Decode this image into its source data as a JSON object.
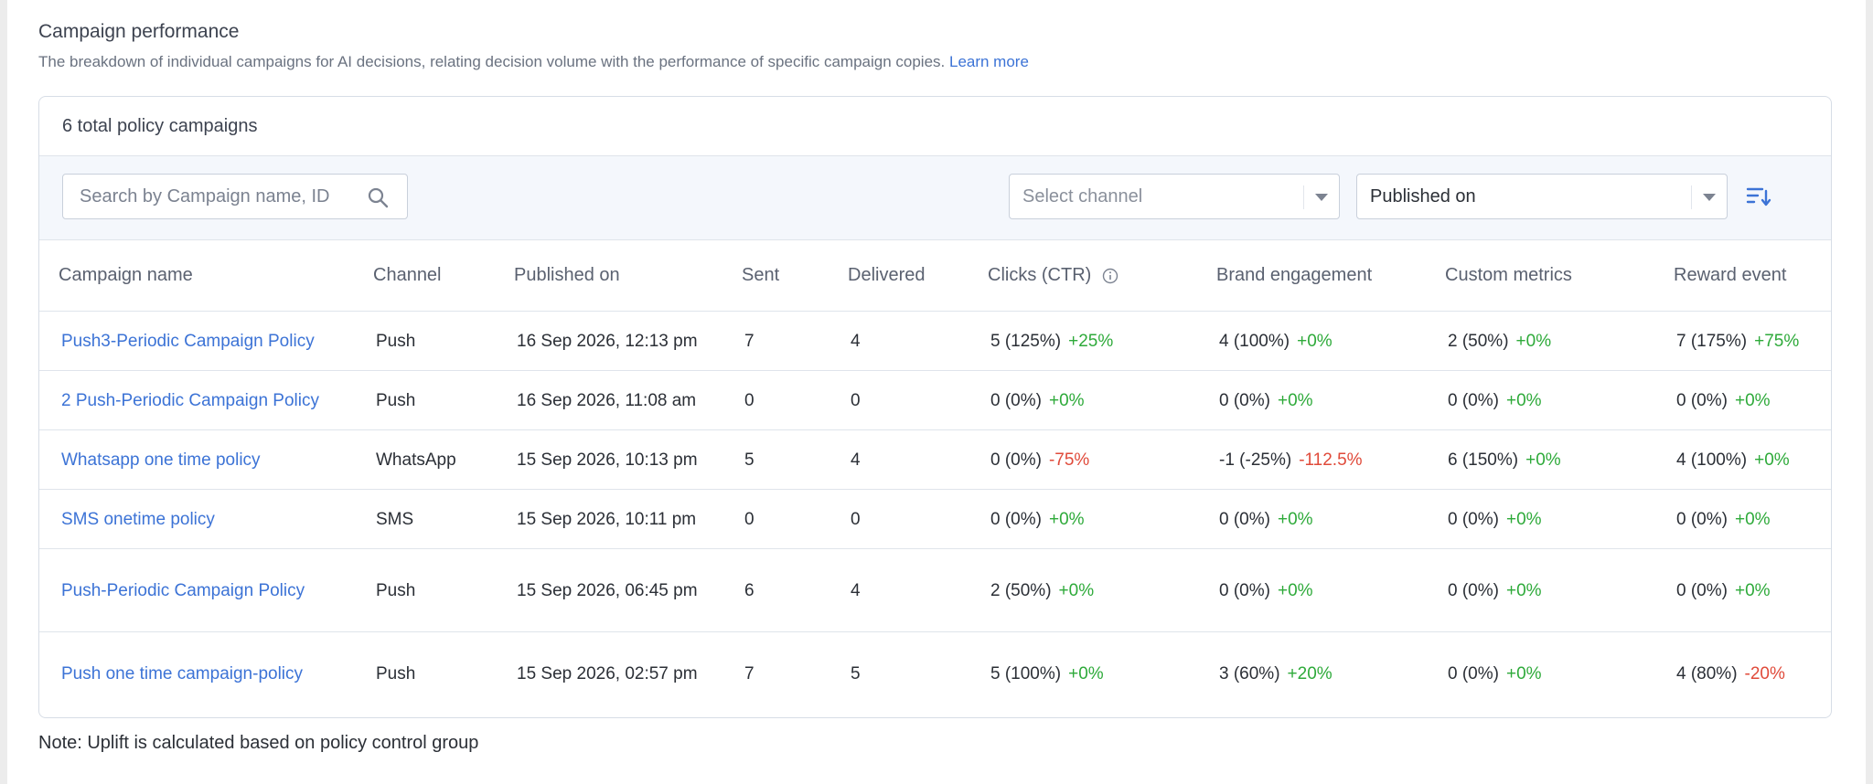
{
  "section": {
    "title": "Campaign performance",
    "description": "The breakdown of individual campaigns for AI decisions, relating decision volume with the performance of specific campaign copies.",
    "learn_more": "Learn more"
  },
  "card": {
    "total_label": "6 total policy campaigns"
  },
  "toolbar": {
    "search_placeholder": "Search by Campaign name, ID",
    "channel_placeholder": "Select channel",
    "sort_selected": "Published on"
  },
  "table": {
    "columns": [
      "Campaign name",
      "Channel",
      "Published on",
      "Sent",
      "Delivered",
      "Clicks (CTR)",
      "Brand engagement",
      "Custom metrics",
      "Reward event"
    ],
    "rows": [
      {
        "name": "Push3-Periodic Campaign Policy",
        "channel": "Push",
        "published": "16 Sep 2026, 12:13 pm",
        "sent": "7",
        "delivered": "4",
        "clicks": "5 (125%)",
        "clicks_delta": "+25%",
        "clicks_trend": "pos",
        "brand": "4 (100%)",
        "brand_delta": "+0%",
        "brand_trend": "pos",
        "custom": "2 (50%)",
        "custom_delta": "+0%",
        "custom_trend": "pos",
        "reward": "7 (175%)",
        "reward_delta": "+75%",
        "reward_trend": "pos",
        "tall": false
      },
      {
        "name": "2 Push-Periodic Campaign Policy",
        "channel": "Push",
        "published": "16 Sep 2026, 11:08 am",
        "sent": "0",
        "delivered": "0",
        "clicks": "0 (0%)",
        "clicks_delta": "+0%",
        "clicks_trend": "pos",
        "brand": "0 (0%)",
        "brand_delta": "+0%",
        "brand_trend": "pos",
        "custom": "0 (0%)",
        "custom_delta": "+0%",
        "custom_trend": "pos",
        "reward": "0 (0%)",
        "reward_delta": "+0%",
        "reward_trend": "pos",
        "tall": false
      },
      {
        "name": "Whatsapp one time policy",
        "channel": "WhatsApp",
        "published": "15 Sep 2026, 10:13 pm",
        "sent": "5",
        "delivered": "4",
        "clicks": "0 (0%)",
        "clicks_delta": "-75%",
        "clicks_trend": "neg",
        "brand": "-1 (-25%)",
        "brand_delta": "-112.5%",
        "brand_trend": "neg",
        "custom": "6 (150%)",
        "custom_delta": "+0%",
        "custom_trend": "pos",
        "reward": "4 (100%)",
        "reward_delta": "+0%",
        "reward_trend": "pos",
        "tall": false
      },
      {
        "name": "SMS onetime policy",
        "channel": "SMS",
        "published": "15 Sep 2026, 10:11 pm",
        "sent": "0",
        "delivered": "0",
        "clicks": "0 (0%)",
        "clicks_delta": "+0%",
        "clicks_trend": "pos",
        "brand": "0 (0%)",
        "brand_delta": "+0%",
        "brand_trend": "pos",
        "custom": "0 (0%)",
        "custom_delta": "+0%",
        "custom_trend": "pos",
        "reward": "0 (0%)",
        "reward_delta": "+0%",
        "reward_trend": "pos",
        "tall": false
      },
      {
        "name": "Push-Periodic Campaign Policy",
        "channel": "Push",
        "published": "15 Sep 2026, 06:45 pm",
        "sent": "6",
        "delivered": "4",
        "clicks": "2 (50%)",
        "clicks_delta": "+0%",
        "clicks_trend": "pos",
        "brand": "0 (0%)",
        "brand_delta": "+0%",
        "brand_trend": "pos",
        "custom": "0 (0%)",
        "custom_delta": "+0%",
        "custom_trend": "pos",
        "reward": "0 (0%)",
        "reward_delta": "+0%",
        "reward_trend": "pos",
        "tall": true
      },
      {
        "name": "Push one time campaign-policy",
        "channel": "Push",
        "published": "15 Sep 2026, 02:57 pm",
        "sent": "7",
        "delivered": "5",
        "clicks": "5 (100%)",
        "clicks_delta": "+0%",
        "clicks_trend": "pos",
        "brand": "3 (60%)",
        "brand_delta": "+20%",
        "brand_trend": "pos",
        "custom": "0 (0%)",
        "custom_delta": "+0%",
        "custom_trend": "pos",
        "reward": "4 (80%)",
        "reward_delta": "-20%",
        "reward_trend": "neg",
        "tall": true
      }
    ]
  },
  "note": "Note: Uplift is calculated based on policy control group",
  "colors": {
    "link": "#3c73d6",
    "positive": "#2eaa3a",
    "negative": "#e04a3a"
  }
}
